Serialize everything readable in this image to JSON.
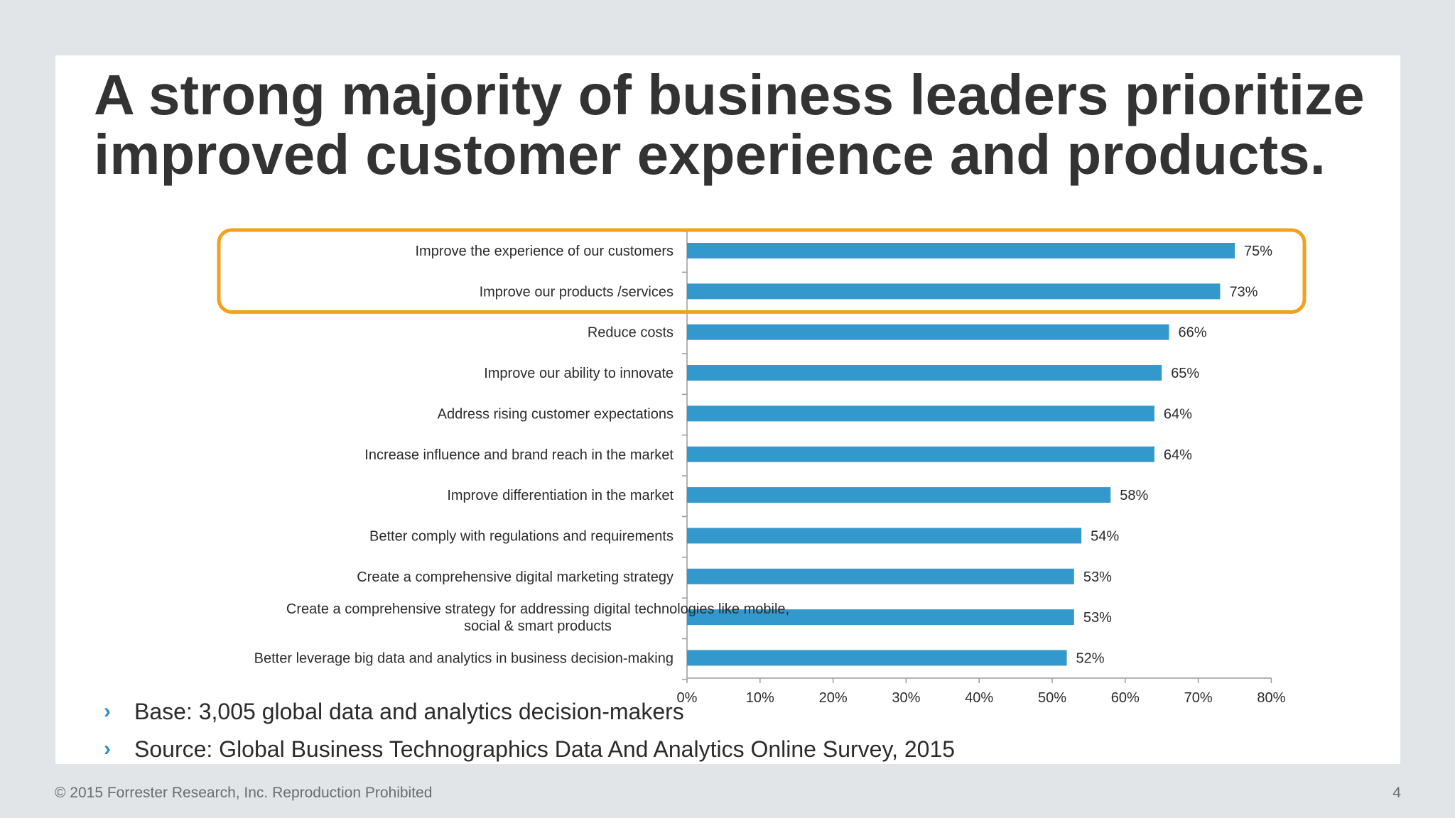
{
  "slide": {
    "title_lines": [
      "A strong majority of business leaders prioritize",
      "improved customer experience and products."
    ],
    "notes": [
      "Base: 3,005 global data and analytics decision-makers",
      "Source: Global Business Technographics Data And Analytics Online Survey, 2015"
    ],
    "bullet_glyph": "›",
    "footer_copyright": "© 2015 Forrester Research, Inc. Reproduction Prohibited",
    "page_number": "4"
  },
  "colors": {
    "bar": "#3399cc",
    "highlight": "#f5a01a",
    "axis": "#9a9a9a",
    "text": "#2b2b2b",
    "background": "#e1e5e7"
  },
  "chart_data": {
    "type": "bar",
    "orientation": "horizontal",
    "categories": [
      [
        "Improve the experience of our customers"
      ],
      [
        "Improve our products /services"
      ],
      [
        "Reduce costs"
      ],
      [
        "Improve our ability to innovate"
      ],
      [
        "Address rising customer expectations"
      ],
      [
        "Increase influence and brand reach in the market"
      ],
      [
        "Improve differentiation in the market"
      ],
      [
        "Better comply with regulations and requirements"
      ],
      [
        "Create a comprehensive digital marketing strategy"
      ],
      [
        "Create a comprehensive strategy for addressing digital technologies like mobile,",
        "social & smart products"
      ],
      [
        "Better leverage big data and analytics in business decision-making"
      ]
    ],
    "values": [
      75,
      73,
      66,
      65,
      64,
      64,
      58,
      54,
      53,
      53,
      52
    ],
    "value_labels": [
      "75%",
      "73%",
      "66%",
      "65%",
      "64%",
      "64%",
      "58%",
      "54%",
      "53%",
      "53%",
      "52%"
    ],
    "xlim": [
      0,
      80
    ],
    "xticks": [
      0,
      10,
      20,
      30,
      40,
      50,
      60,
      70,
      80
    ],
    "xtick_labels": [
      "0%",
      "10%",
      "20%",
      "30%",
      "40%",
      "50%",
      "60%",
      "70%",
      "80%"
    ],
    "highlighted_categories": [
      0,
      1
    ],
    "grid": false,
    "legend": "none"
  }
}
